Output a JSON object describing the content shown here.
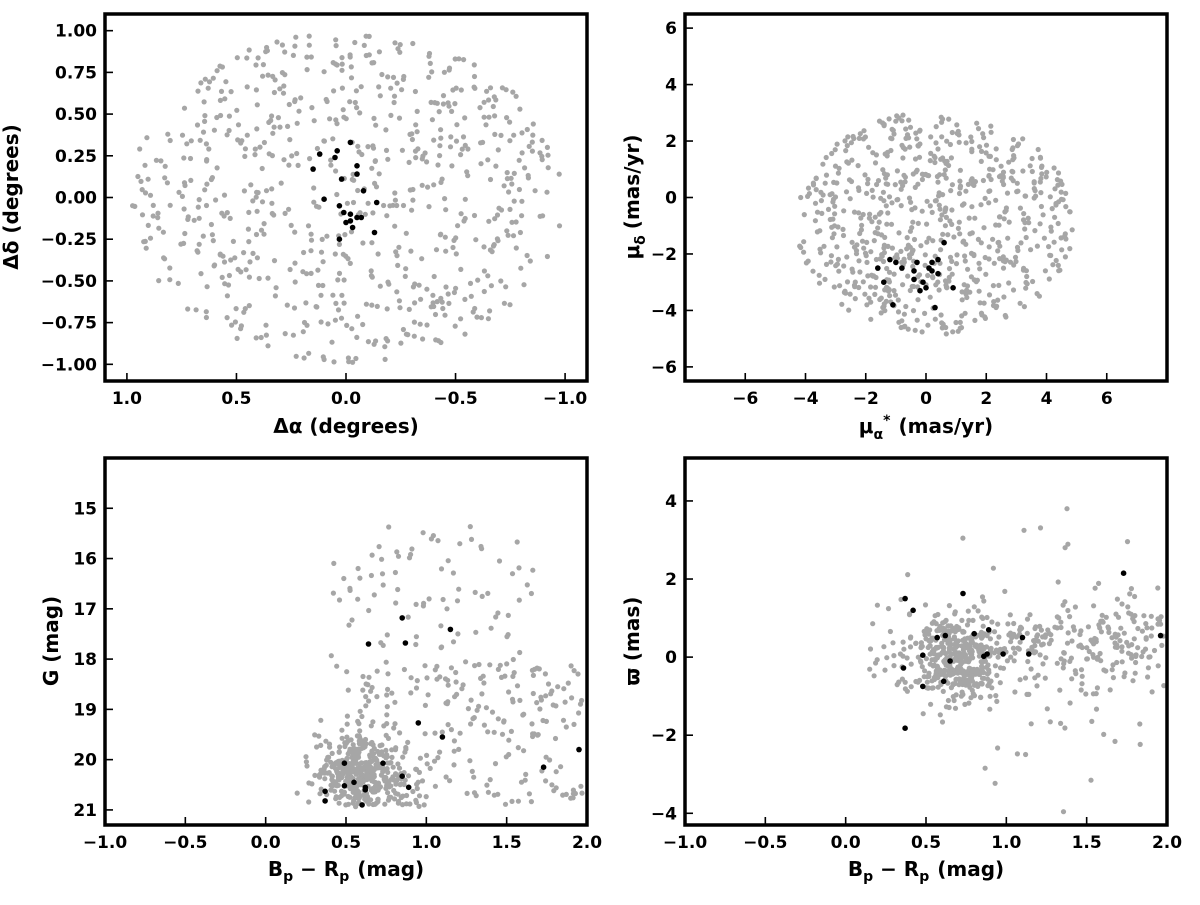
{
  "colors": {
    "field": "#a6a6a6",
    "member": "#000000",
    "frame": "#000000"
  },
  "chart_data": [
    {
      "id": "sky",
      "type": "scatter",
      "xlabel": "Δα (degrees)",
      "ylabel": "Δδ (degrees)",
      "xlim": [
        1.1,
        -1.1
      ],
      "ylim": [
        -1.1,
        1.1
      ],
      "xticks": [
        1.0,
        0.5,
        0.0,
        -0.5,
        -1.0
      ],
      "xtick_labels": [
        "1.0",
        "0.5",
        "0.0",
        "−0.5",
        "−1.0"
      ],
      "yticks": [
        1.0,
        0.75,
        0.5,
        0.25,
        0.0,
        -0.25,
        -0.5,
        -0.75,
        -1.0
      ],
      "ytick_labels": [
        "1.00",
        "0.75",
        "0.50",
        "0.25",
        "0.00",
        "−0.25",
        "−0.50",
        "−0.75",
        "−1.00"
      ],
      "field_stars": {
        "count": 700,
        "distribution": "uniform disk",
        "center": [
          0,
          0
        ],
        "radius": 1.0
      },
      "series": [
        {
          "role": "members",
          "points": [
            [
              0.15,
              0.17
            ],
            [
              0.12,
              0.26
            ],
            [
              0.05,
              0.24
            ],
            [
              0.04,
              0.28
            ],
            [
              -0.02,
              0.33
            ],
            [
              -0.05,
              0.19
            ],
            [
              -0.05,
              0.14
            ],
            [
              0.02,
              0.11
            ],
            [
              -0.08,
              0.04
            ],
            [
              0.1,
              -0.01
            ],
            [
              0.03,
              -0.05
            ],
            [
              0.01,
              -0.09
            ],
            [
              -0.02,
              -0.1
            ],
            [
              -0.05,
              -0.12
            ],
            [
              -0.07,
              -0.12
            ],
            [
              -0.02,
              -0.14
            ],
            [
              0.0,
              -0.15
            ],
            [
              -0.03,
              -0.18
            ],
            [
              -0.14,
              -0.03
            ],
            [
              -0.13,
              -0.21
            ],
            [
              0.03,
              -0.25
            ]
          ]
        }
      ]
    },
    {
      "id": "pm",
      "type": "scatter",
      "xlabel": "μα* (mas/yr)",
      "xlabel_main": "μ",
      "xlabel_sub": "α",
      "xlabel_sup": "*",
      "xlabel_unit": "(mas/yr)",
      "ylabel": "μδ (mas/yr)",
      "ylabel_main": "μ",
      "ylabel_sub": "δ",
      "ylabel_unit": "(mas/yr)",
      "xlim": [
        -8,
        8
      ],
      "ylim": [
        -6.5,
        6.5
      ],
      "xticks": [
        -6,
        -4,
        -2,
        0,
        2,
        4,
        6
      ],
      "xtick_labels": [
        "−6",
        "−4",
        "−2",
        "0",
        "2",
        "4",
        "6"
      ],
      "yticks": [
        -6,
        -4,
        -2,
        0,
        2,
        4,
        6
      ],
      "ytick_labels": [
        "−6",
        "−4",
        "−2",
        "0",
        "2",
        "4",
        "6"
      ],
      "field_stars": {
        "count": 700,
        "distribution": "ellipse",
        "center": [
          0.3,
          -1.0
        ],
        "semi_axes": [
          4.7,
          4.0
        ]
      },
      "series": [
        {
          "role": "members",
          "points": [
            [
              -1.6,
              -2.5
            ],
            [
              -1.0,
              -2.3
            ],
            [
              -0.8,
              -2.5
            ],
            [
              -0.4,
              -2.6
            ],
            [
              -0.3,
              -2.3
            ],
            [
              0.2,
              -2.3
            ],
            [
              0.4,
              -2.2
            ],
            [
              0.2,
              -2.6
            ],
            [
              0.4,
              -2.7
            ],
            [
              -0.4,
              -2.9
            ],
            [
              -1.4,
              -3.0
            ],
            [
              -0.1,
              -3.0
            ],
            [
              -0.2,
              -3.3
            ],
            [
              0.0,
              -3.2
            ],
            [
              0.9,
              -3.2
            ],
            [
              0.6,
              -1.6
            ],
            [
              -1.1,
              -3.8
            ],
            [
              0.3,
              -3.9
            ],
            [
              -1.2,
              -2.2
            ],
            [
              0.1,
              -2.5
            ]
          ]
        }
      ]
    },
    {
      "id": "cmd",
      "type": "scatter",
      "xlabel": "Bp − Rp (mag)",
      "xlabel_main": "B",
      "xlabel_sub1": "p",
      "xlabel_minus": " − R",
      "xlabel_sub2": "p",
      "xlabel_unit": "(mag)",
      "ylabel": "G (mag)",
      "xlim": [
        -1.0,
        2.0
      ],
      "ylim": [
        21.3,
        14.0
      ],
      "xticks": [
        -1.0,
        -0.5,
        0.0,
        0.5,
        1.0,
        1.5,
        2.0
      ],
      "xtick_labels": [
        "−1.0",
        "−0.5",
        "0.0",
        "0.5",
        "1.0",
        "1.5",
        "2.0"
      ],
      "yticks": [
        21,
        20,
        19,
        18,
        17,
        16,
        15
      ],
      "ytick_labels": [
        "21",
        "20",
        "19",
        "18",
        "17",
        "16",
        "15"
      ],
      "field_stars": {
        "count": 700,
        "main_concentration": {
          "x": [
            0.35,
            0.95
          ],
          "y": [
            19.6,
            20.9
          ]
        }
      },
      "series": [
        {
          "role": "members",
          "points": [
            [
              0.37,
              20.82
            ],
            [
              0.37,
              20.63
            ],
            [
              0.49,
              20.52
            ],
            [
              0.6,
              20.9
            ],
            [
              0.62,
              20.6
            ],
            [
              0.62,
              20.55
            ],
            [
              0.55,
              20.45
            ],
            [
              0.89,
              20.55
            ],
            [
              0.85,
              20.33
            ],
            [
              0.49,
              20.07
            ],
            [
              0.73,
              20.07
            ],
            [
              1.1,
              19.55
            ],
            [
              0.95,
              19.27
            ],
            [
              1.73,
              20.15
            ],
            [
              1.95,
              19.8
            ],
            [
              0.64,
              17.7
            ],
            [
              0.87,
              17.68
            ],
            [
              1.15,
              17.41
            ],
            [
              0.85,
              17.18
            ]
          ]
        }
      ]
    },
    {
      "id": "parallax",
      "type": "scatter",
      "xlabel": "Bp − Rp (mag)",
      "xlabel_main": "B",
      "xlabel_sub1": "p",
      "xlabel_minus": " − R",
      "xlabel_sub2": "p",
      "xlabel_unit": "(mag)",
      "ylabel": "ϖ (mas)",
      "xlim": [
        -1.0,
        2.0
      ],
      "ylim": [
        -4.3,
        5.1
      ],
      "xticks": [
        -1.0,
        -0.5,
        0.0,
        0.5,
        1.0,
        1.5,
        2.0
      ],
      "xtick_labels": [
        "−1.0",
        "−0.5",
        "0.0",
        "0.5",
        "1.0",
        "1.5",
        "2.0"
      ],
      "yticks": [
        4,
        2,
        0,
        -2,
        -4
      ],
      "ytick_labels": [
        "4",
        "2",
        "0",
        "−2",
        "−4"
      ],
      "field_stars": {
        "count": 700,
        "main_concentration": {
          "x": [
            0.4,
            1.1
          ],
          "y": [
            -1.0,
            1.0
          ]
        }
      },
      "series": [
        {
          "role": "members",
          "points": [
            [
              0.37,
              1.5
            ],
            [
              0.42,
              1.2
            ],
            [
              0.36,
              -0.28
            ],
            [
              0.48,
              0.05
            ],
            [
              0.57,
              0.5
            ],
            [
              0.62,
              0.55
            ],
            [
              0.65,
              -0.1
            ],
            [
              0.61,
              -0.62
            ],
            [
              0.73,
              1.63
            ],
            [
              0.8,
              0.6
            ],
            [
              0.86,
              0.02
            ],
            [
              0.88,
              0.08
            ],
            [
              0.89,
              0.7
            ],
            [
              0.98,
              0.08
            ],
            [
              1.1,
              0.5
            ],
            [
              1.14,
              0.08
            ],
            [
              1.73,
              2.15
            ],
            [
              1.96,
              0.55
            ],
            [
              0.48,
              -0.75
            ],
            [
              0.37,
              -1.82
            ]
          ]
        }
      ]
    }
  ]
}
